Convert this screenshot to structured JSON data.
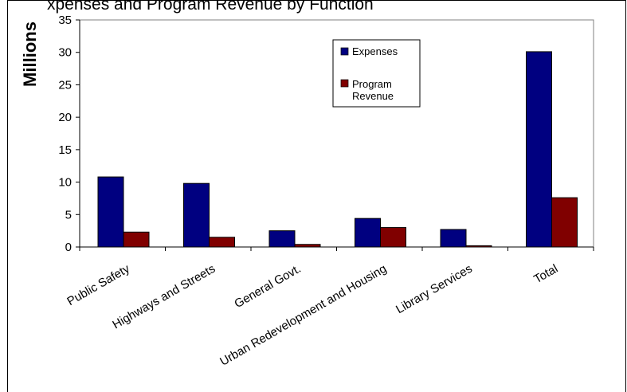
{
  "chart_data": {
    "type": "bar",
    "title": "",
    "title_partial": "xpenses and Program Revenue by Function",
    "ylabel": "Millions",
    "xlabel": "",
    "ylim": [
      0,
      35
    ],
    "yticks": [
      "0",
      "5",
      "10",
      "15",
      "20",
      "25",
      "30",
      "35"
    ],
    "grid": false,
    "legend_position": "top-center",
    "categories": [
      "Public Safety",
      "Highways and Streets",
      "General Govt.",
      "Urban Redevelopment and Housing",
      "Library Services",
      "Total"
    ],
    "series": [
      {
        "name": "Expenses",
        "color": "#000080",
        "values": [
          10.8,
          9.8,
          2.5,
          4.4,
          2.7,
          30.1
        ]
      },
      {
        "name": "Program Revenue",
        "color": "#800000",
        "values": [
          2.3,
          1.5,
          0.4,
          3.0,
          0.2,
          7.6
        ]
      }
    ]
  }
}
